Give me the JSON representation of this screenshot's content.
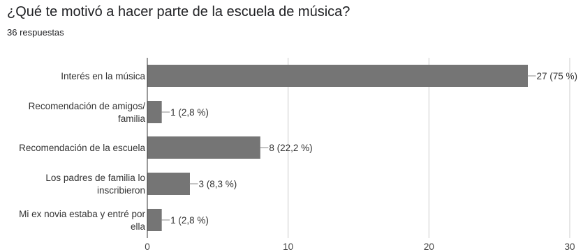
{
  "title": "¿Qué te motivó a hacer parte de la escuela de música?",
  "subtitle": "36 respuestas",
  "colors": {
    "bar": "#757575",
    "axis": "#333333",
    "grid": "#cccccc",
    "leader": "#888888"
  },
  "chart_data": {
    "type": "bar",
    "orientation": "horizontal",
    "categories": [
      [
        "Interés en la música"
      ],
      [
        "Recomendación de amigos/",
        "familia"
      ],
      [
        "Recomendación de la escuela"
      ],
      [
        "Los padres de familia lo",
        "inscribieron"
      ],
      [
        "Mi ex novia estaba y entré por",
        "ella"
      ]
    ],
    "values": [
      27,
      1,
      8,
      3,
      1
    ],
    "data_labels": [
      "27 (75 %)",
      "1 (2,8 %)",
      "8 (22,2 %)",
      "3 (8,3 %)",
      "1 (2,8 %)"
    ],
    "xlim": [
      0,
      30
    ],
    "xticks": [
      0,
      10,
      20,
      30
    ],
    "grid": true
  }
}
